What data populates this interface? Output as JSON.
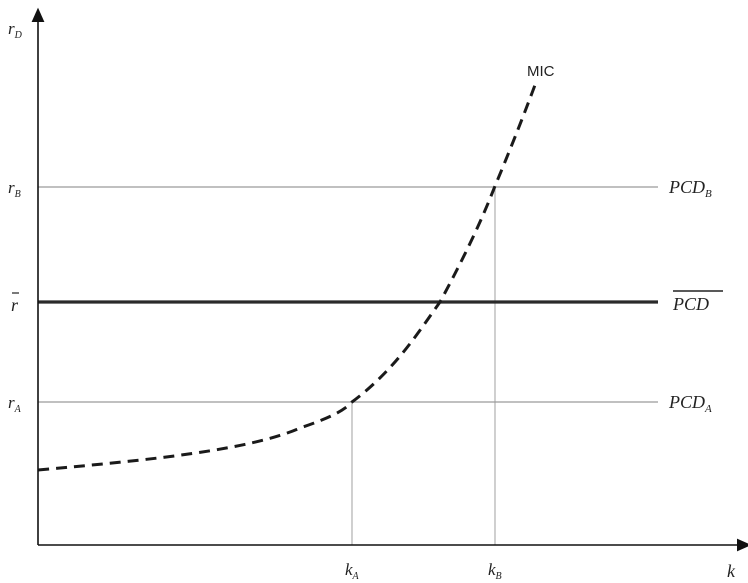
{
  "diagram": {
    "y_axis": {
      "label": "r",
      "sub": "D"
    },
    "x_axis": {
      "label": "k"
    },
    "curve": {
      "label": "MIC"
    },
    "levels": {
      "r_b": {
        "label": "r",
        "sub": "B"
      },
      "r_bar": {
        "label": "r"
      },
      "r_a": {
        "label": "r",
        "sub": "A"
      }
    },
    "lines": {
      "pcd_b": {
        "label": "PCD",
        "sub": "B"
      },
      "pcd_bar": {
        "label": "PCD"
      },
      "pcd_a": {
        "label": "PCD",
        "sub": "A"
      }
    },
    "x_ticks": {
      "k_a": {
        "label": "k",
        "sub": "A"
      },
      "k_b": {
        "label": "k",
        "sub": "B"
      }
    },
    "colors": {
      "axis": "#111111",
      "pcd_lines": "#9a9a9a",
      "pcd_bar_line": "#2a2a2a",
      "curve": "#1a1a1a"
    }
  }
}
